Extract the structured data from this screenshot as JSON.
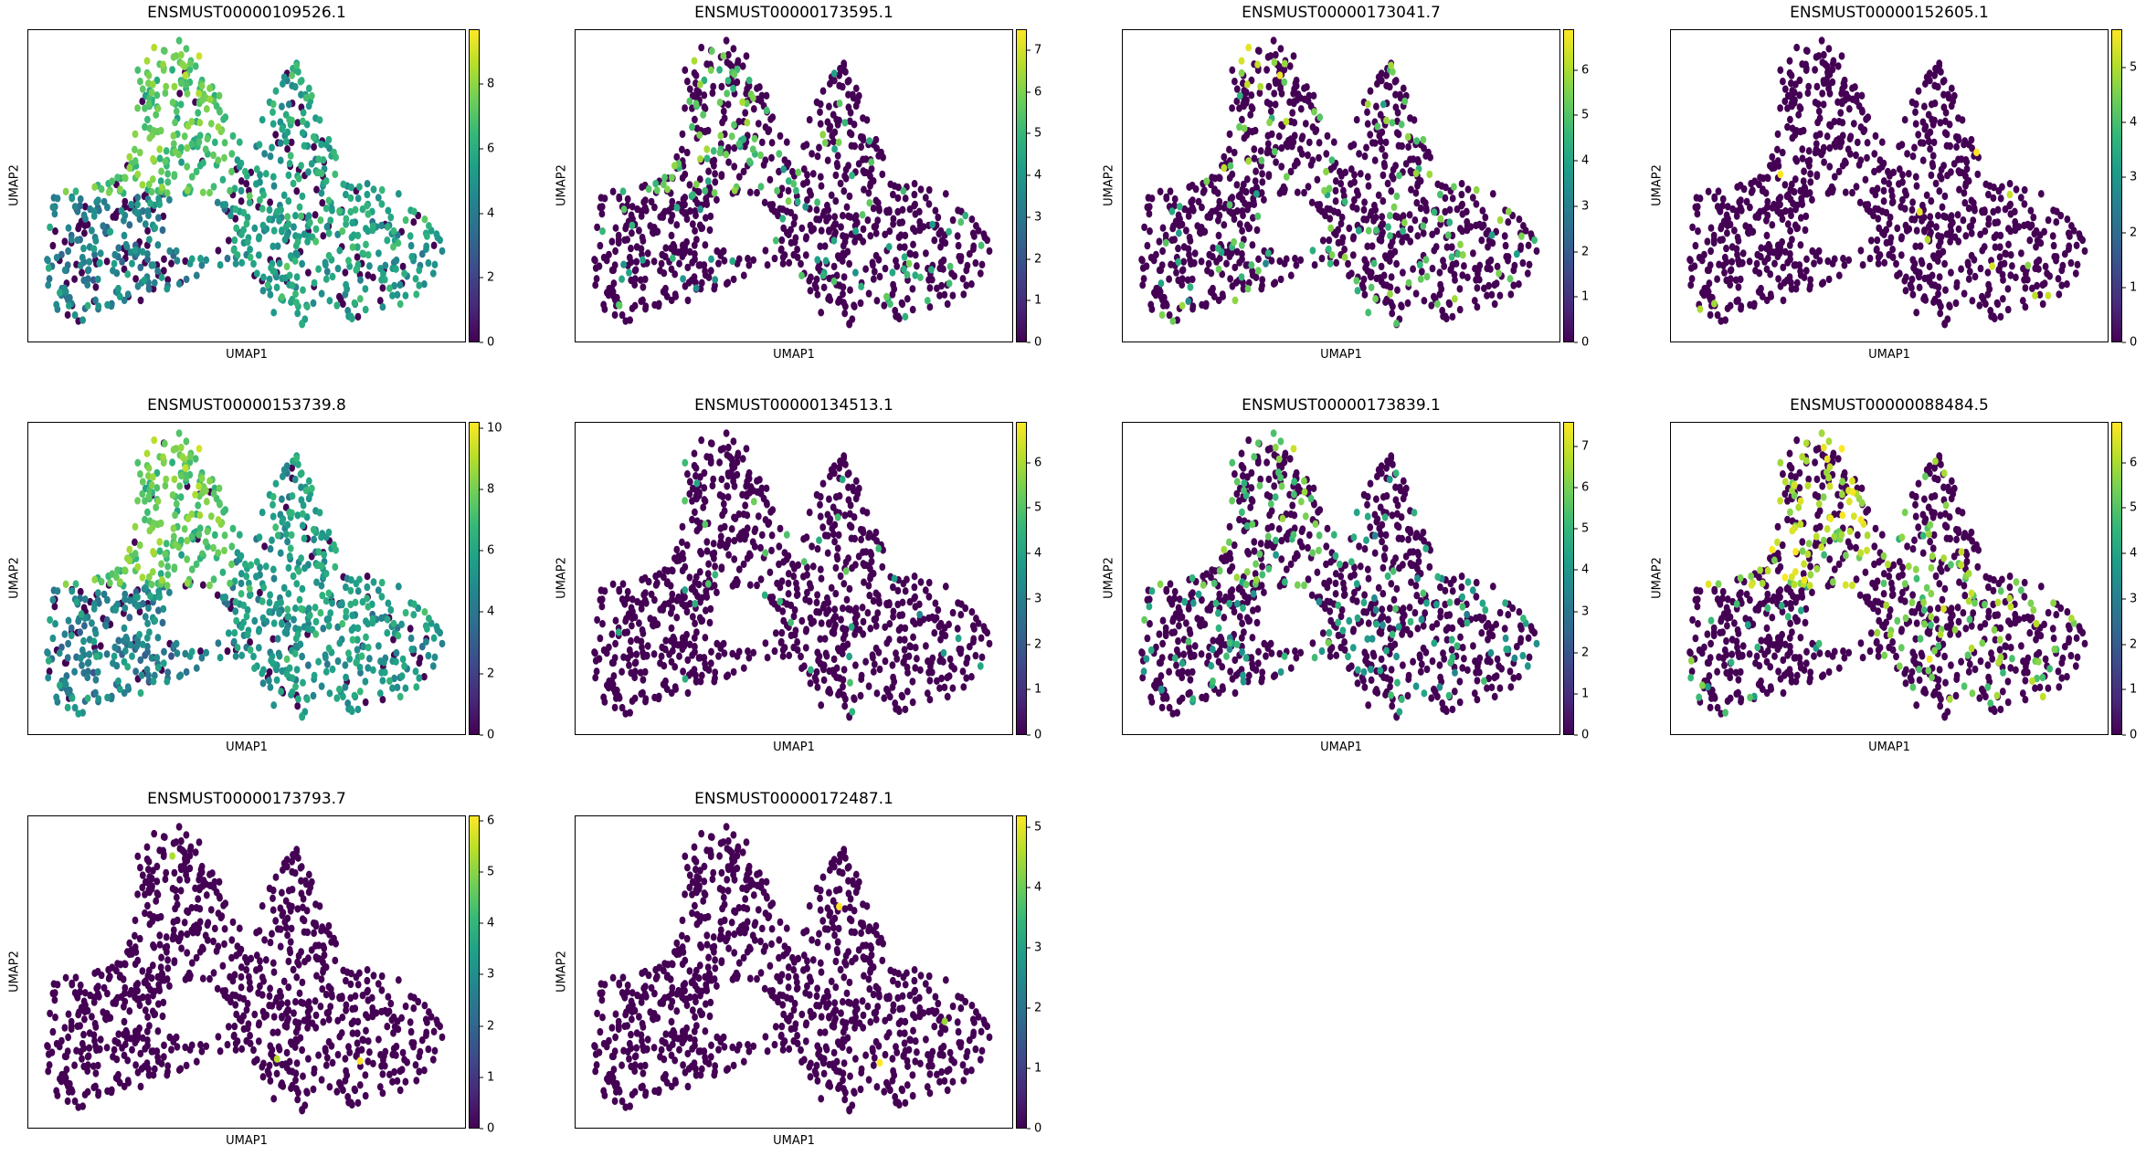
{
  "chart_data": [
    {
      "type": "scatter",
      "title": "ENSMUST00000109526.1",
      "xlabel": "UMAP1",
      "ylabel": "UMAP2",
      "colorbar": {
        "min": 0,
        "max": 9.7,
        "ticks": [
          0,
          2,
          4,
          6,
          8
        ]
      },
      "cluster_expression": {
        "top_lobe": {
          "mean": 7.0,
          "fraction_expressing": 0.95
        },
        "right_cluster": {
          "mean": 5.5,
          "fraction_expressing": 0.85
        },
        "left_arm": {
          "mean": 4.3,
          "fraction_expressing": 0.75
        }
      }
    },
    {
      "type": "scatter",
      "title": "ENSMUST00000173595.1",
      "xlabel": "UMAP1",
      "ylabel": "UMAP2",
      "colorbar": {
        "min": 0,
        "max": 7.5,
        "ticks": [
          0,
          1,
          2,
          3,
          4,
          5,
          6,
          7
        ]
      },
      "cluster_expression": {
        "top_lobe": {
          "mean": 5.5,
          "fraction_expressing": 0.3
        },
        "right_cluster": {
          "mean": 5.0,
          "fraction_expressing": 0.12
        },
        "left_arm": {
          "mean": 4.5,
          "fraction_expressing": 0.08
        }
      }
    },
    {
      "type": "scatter",
      "title": "ENSMUST00000173041.7",
      "xlabel": "UMAP1",
      "ylabel": "UMAP2",
      "colorbar": {
        "min": 0,
        "max": 6.9,
        "ticks": [
          0,
          1,
          2,
          3,
          4,
          5,
          6
        ]
      },
      "cluster_expression": {
        "top_lobe": {
          "mean": 5.5,
          "fraction_expressing": 0.15
        },
        "right_cluster": {
          "mean": 5.0,
          "fraction_expressing": 0.15
        },
        "left_arm": {
          "mean": 4.5,
          "fraction_expressing": 0.1
        }
      }
    },
    {
      "type": "scatter",
      "title": "ENSMUST00000152605.1",
      "xlabel": "UMAP1",
      "ylabel": "UMAP2",
      "colorbar": {
        "min": 0,
        "max": 5.7,
        "ticks": [
          0,
          1,
          2,
          3,
          4,
          5
        ]
      },
      "cluster_expression": {
        "top_lobe": {
          "mean": 5.5,
          "fraction_expressing": 0.01
        },
        "right_cluster": {
          "mean": 5.3,
          "fraction_expressing": 0.012
        },
        "left_arm": {
          "mean": 5.0,
          "fraction_expressing": 0.01
        }
      }
    },
    {
      "type": "scatter",
      "title": "ENSMUST00000153739.8",
      "xlabel": "UMAP1",
      "ylabel": "UMAP2",
      "colorbar": {
        "min": 0,
        "max": 10.2,
        "ticks": [
          0,
          2,
          4,
          6,
          8,
          10
        ]
      },
      "cluster_expression": {
        "top_lobe": {
          "mean": 7.5,
          "fraction_expressing": 0.95
        },
        "right_cluster": {
          "mean": 5.5,
          "fraction_expressing": 0.9
        },
        "left_arm": {
          "mean": 4.5,
          "fraction_expressing": 0.8
        }
      }
    },
    {
      "type": "scatter",
      "title": "ENSMUST00000134513.1",
      "xlabel": "UMAP1",
      "ylabel": "UMAP2",
      "colorbar": {
        "min": 0,
        "max": 6.9,
        "ticks": [
          0,
          1,
          2,
          3,
          4,
          5,
          6
        ]
      },
      "cluster_expression": {
        "top_lobe": {
          "mean": 4.8,
          "fraction_expressing": 0.05
        },
        "right_cluster": {
          "mean": 4.5,
          "fraction_expressing": 0.04
        },
        "left_arm": {
          "mean": 4.3,
          "fraction_expressing": 0.03
        }
      }
    },
    {
      "type": "scatter",
      "title": "ENSMUST00000173839.1",
      "xlabel": "UMAP1",
      "ylabel": "UMAP2",
      "colorbar": {
        "min": 0,
        "max": 7.6,
        "ticks": [
          0,
          1,
          2,
          3,
          4,
          5,
          6,
          7
        ]
      },
      "cluster_expression": {
        "top_lobe": {
          "mean": 5.5,
          "fraction_expressing": 0.3
        },
        "right_cluster": {
          "mean": 4.5,
          "fraction_expressing": 0.2
        },
        "left_arm": {
          "mean": 4.5,
          "fraction_expressing": 0.12
        }
      }
    },
    {
      "type": "scatter",
      "title": "ENSMUST00000088484.5",
      "xlabel": "UMAP1",
      "ylabel": "UMAP2",
      "colorbar": {
        "min": 0,
        "max": 6.9,
        "ticks": [
          0,
          1,
          2,
          3,
          4,
          5,
          6
        ]
      },
      "cluster_expression": {
        "top_lobe": {
          "mean": 6.0,
          "fraction_expressing": 0.45
        },
        "right_cluster": {
          "mean": 5.5,
          "fraction_expressing": 0.25
        },
        "left_arm": {
          "mean": 4.5,
          "fraction_expressing": 0.08
        }
      }
    },
    {
      "type": "scatter",
      "title": "ENSMUST00000173793.7",
      "xlabel": "UMAP1",
      "ylabel": "UMAP2",
      "colorbar": {
        "min": 0,
        "max": 6.1,
        "ticks": [
          0,
          1,
          2,
          3,
          4,
          5,
          6
        ]
      },
      "cluster_expression": {
        "top_lobe": {
          "mean": 6.0,
          "fraction_expressing": 0.004
        },
        "right_cluster": {
          "mean": 6.0,
          "fraction_expressing": 0.003
        },
        "left_arm": {
          "mean": 0,
          "fraction_expressing": 0
        }
      }
    },
    {
      "type": "scatter",
      "title": "ENSMUST00000172487.1",
      "xlabel": "UMAP1",
      "ylabel": "UMAP2",
      "colorbar": {
        "min": 0,
        "max": 5.2,
        "ticks": [
          0,
          1,
          2,
          3,
          4,
          5
        ]
      },
      "cluster_expression": {
        "top_lobe": {
          "mean": 0,
          "fraction_expressing": 0
        },
        "right_cluster": {
          "mean": 5.2,
          "fraction_expressing": 0.003
        },
        "left_arm": {
          "mean": 0,
          "fraction_expressing": 0
        }
      }
    }
  ],
  "colormap": {
    "name": "viridis",
    "stops": [
      "#440154",
      "#482878",
      "#3e4989",
      "#31688e",
      "#26828e",
      "#1f9e89",
      "#35b779",
      "#6ece58",
      "#b5de2b",
      "#fde725"
    ]
  }
}
